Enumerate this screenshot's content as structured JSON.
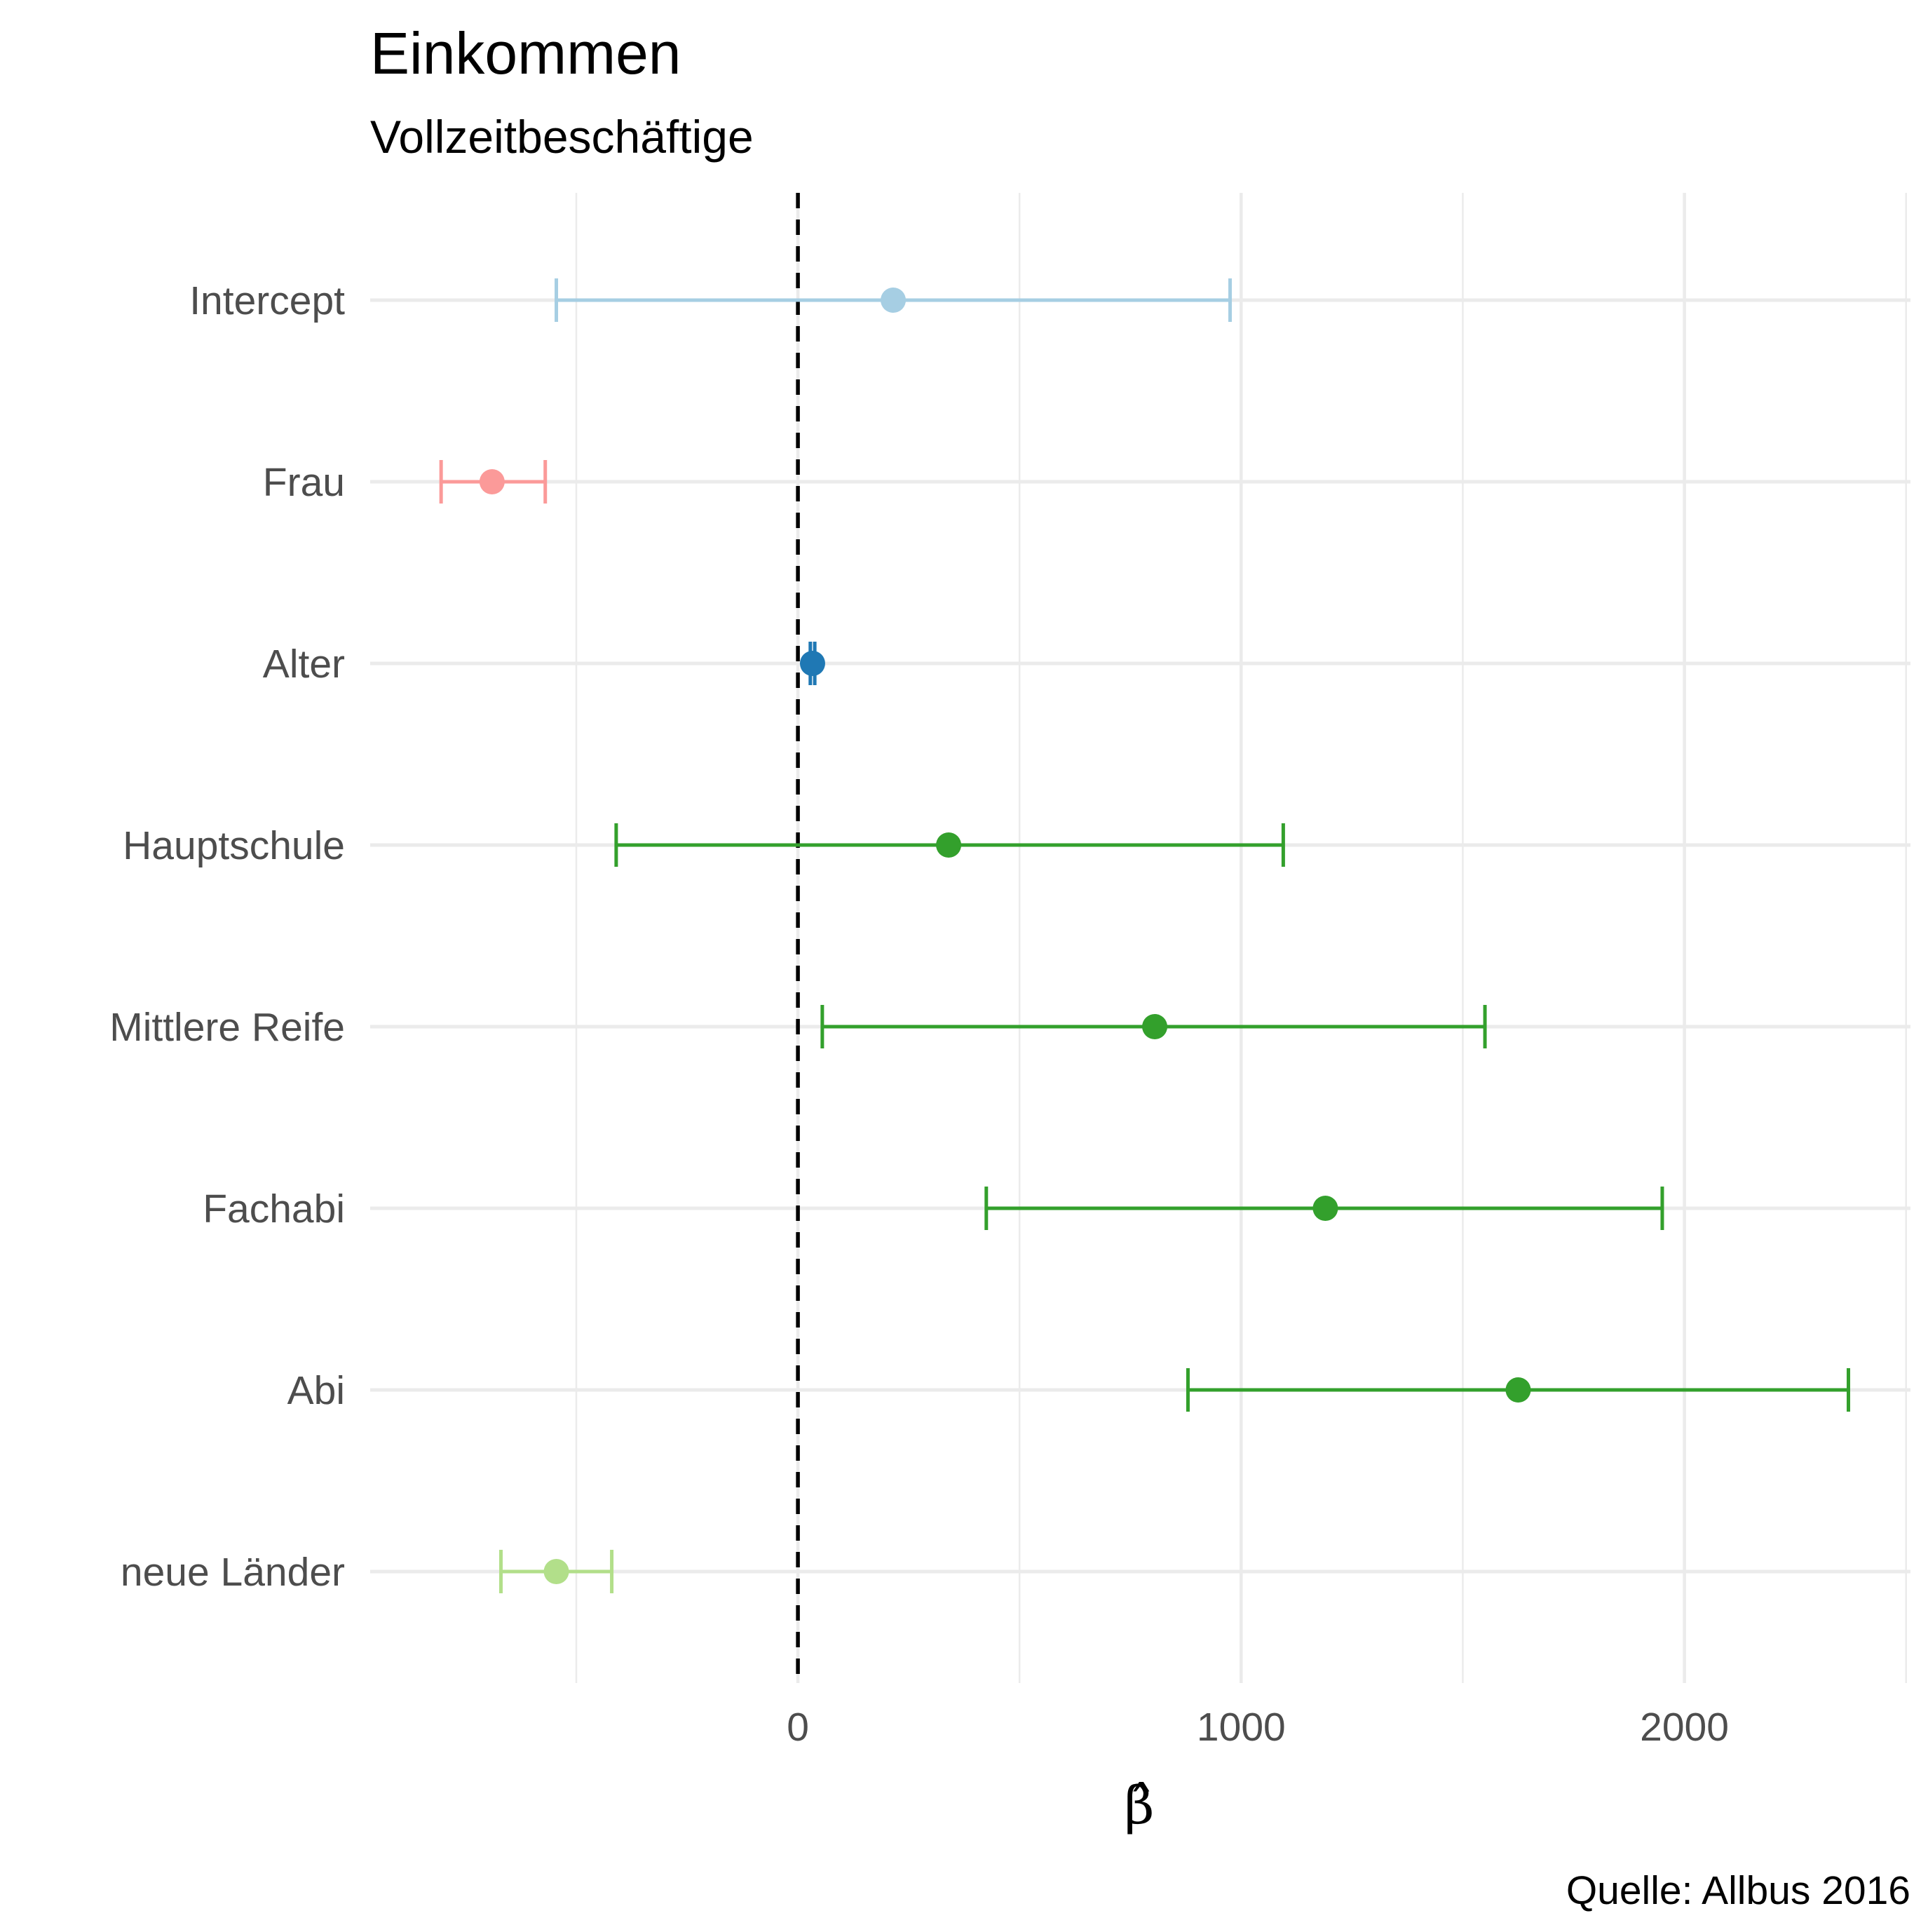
{
  "chart_data": {
    "type": "scatter",
    "title": "Einkommen",
    "subtitle": "Vollzeitbeschäftige",
    "xlabel": "β̂",
    "ylabel": "",
    "caption": "Quelle: Allbus 2016",
    "xlim": [
      -965,
      2510
    ],
    "x_ticks": [
      0,
      1000,
      2000
    ],
    "x_tick_labels": [
      "0",
      "1000",
      "2000"
    ],
    "x_minor_ticks": [
      -500,
      500,
      1500,
      2500
    ],
    "reference_line": {
      "x": 0,
      "style": "dashed",
      "color": "#000000"
    },
    "grid": true,
    "legend": "none",
    "series": [
      {
        "name": "Intercept",
        "estimate": 215,
        "lower": -545,
        "upper": 975,
        "color": "#a6cee3"
      },
      {
        "name": "Frau",
        "estimate": -690,
        "lower": -805,
        "upper": -570,
        "color": "#fb9a99"
      },
      {
        "name": "Alter",
        "estimate": 33,
        "lower": 28,
        "upper": 38,
        "color": "#1f78b4"
      },
      {
        "name": "Hauptschule",
        "estimate": 340,
        "lower": -410,
        "upper": 1095,
        "color": "#33a02c"
      },
      {
        "name": "Mittlere Reife",
        "estimate": 805,
        "lower": 55,
        "upper": 1550,
        "color": "#33a02c"
      },
      {
        "name": "Fachabi",
        "estimate": 1190,
        "lower": 425,
        "upper": 1950,
        "color": "#33a02c"
      },
      {
        "name": "Abi",
        "estimate": 1625,
        "lower": 880,
        "upper": 2370,
        "color": "#33a02c"
      },
      {
        "name": "neue Länder",
        "estimate": -545,
        "lower": -670,
        "upper": -420,
        "color": "#b2df8a"
      }
    ]
  }
}
